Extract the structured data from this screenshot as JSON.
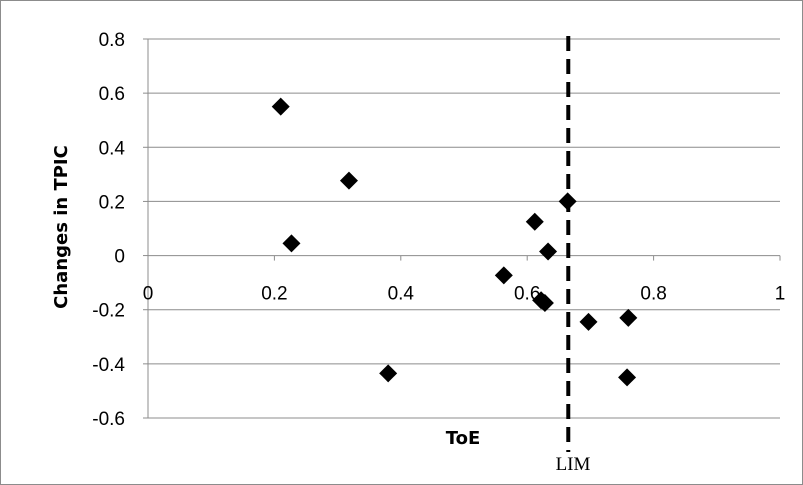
{
  "chart_data": {
    "type": "scatter",
    "title": "",
    "xlabel": "ToE",
    "ylabel": "Changes in TPIC",
    "xlim": [
      0,
      1
    ],
    "ylim": [
      -0.6,
      0.8
    ],
    "xticks": [
      0,
      0.2,
      0.4,
      0.6,
      0.8,
      1
    ],
    "yticks": [
      -0.6,
      -0.4,
      -0.2,
      0,
      0.2,
      0.4,
      0.6,
      0.8
    ],
    "xtick_labels": [
      "0",
      "0.2",
      "0.4",
      "0.6",
      "0.8",
      "1"
    ],
    "ytick_labels": [
      "-0.6",
      "-0.4",
      "-0.2",
      "0",
      "0.2",
      "0.4",
      "0.6",
      "0.8"
    ],
    "grid": "horizontal",
    "marker": "diamond",
    "marker_color": "#000000",
    "series": [
      {
        "points": [
          {
            "x": 0.21,
            "y": 0.55
          },
          {
            "x": 0.227,
            "y": 0.045
          },
          {
            "x": 0.318,
            "y": 0.277
          },
          {
            "x": 0.38,
            "y": -0.435
          },
          {
            "x": 0.563,
            "y": -0.073
          },
          {
            "x": 0.612,
            "y": 0.125
          },
          {
            "x": 0.622,
            "y": -0.165
          },
          {
            "x": 0.628,
            "y": -0.175
          },
          {
            "x": 0.633,
            "y": 0.015
          },
          {
            "x": 0.664,
            "y": 0.2
          },
          {
            "x": 0.697,
            "y": -0.245
          },
          {
            "x": 0.76,
            "y": -0.23
          },
          {
            "x": 0.758,
            "y": -0.45
          }
        ]
      }
    ],
    "reference_line": {
      "x": 0.665,
      "style": "dashed",
      "label": "LIM"
    }
  }
}
